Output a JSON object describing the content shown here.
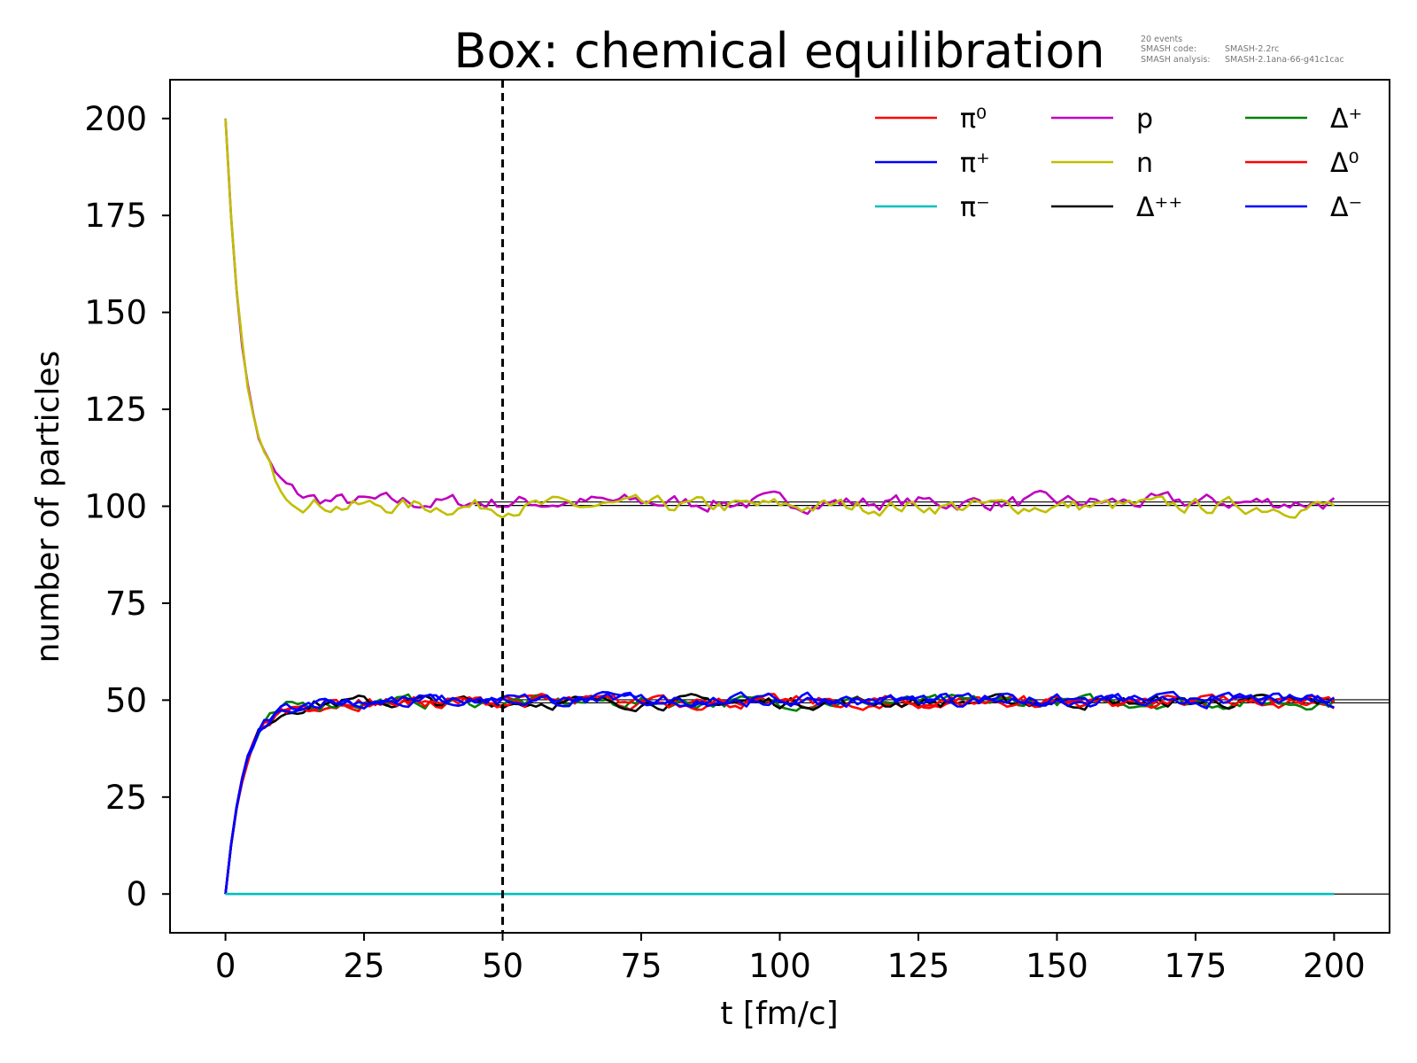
{
  "chart_data": {
    "type": "line",
    "title": "Box: chemical equilibration",
    "annotation": {
      "events": "20 events",
      "code_label": "SMASH code:",
      "code_value": "SMASH-2.2rc",
      "analysis_label": "SMASH analysis:",
      "analysis_value": "SMASH-2.1ana-66-g41c1cac"
    },
    "xlabel": "t [fm/c]",
    "ylabel": "number of particles",
    "xlim": [
      -10,
      210
    ],
    "ylim": [
      -10,
      210
    ],
    "xticks": [
      0,
      25,
      50,
      75,
      100,
      125,
      150,
      175,
      200
    ],
    "yticks": [
      0,
      25,
      50,
      75,
      100,
      125,
      150,
      175,
      200
    ],
    "grid": false,
    "legend_position": "top-right",
    "legend_columns": 3,
    "vertical_line": {
      "x": 50,
      "style": "dashed",
      "color": "#000000"
    },
    "series": [
      {
        "name": "π⁰",
        "color": "#ff0000",
        "start": 0,
        "equilibrium": 49.5
      },
      {
        "name": "π⁺",
        "color": "#0000ff",
        "start": 0,
        "equilibrium": 50
      },
      {
        "name": "π⁻",
        "color": "#00bfbf",
        "start": 0,
        "equilibrium": 0
      },
      {
        "name": "p",
        "color": "#bf00bf",
        "start": 200,
        "equilibrium": 101
      },
      {
        "name": "n",
        "color": "#bfbf00",
        "start": 200,
        "equilibrium": 100
      },
      {
        "name": "Δ⁺⁺",
        "color": "#000000",
        "start": 0,
        "equilibrium": 49.5
      },
      {
        "name": "Δ⁺",
        "color": "#008000",
        "start": 0,
        "equilibrium": 49.5
      },
      {
        "name": "Δ⁰",
        "color": "#ff0000",
        "start": 0,
        "equilibrium": 49.5
      },
      {
        "name": "Δ⁻",
        "color": "#0000ff",
        "start": 0,
        "equilibrium": 50
      }
    ],
    "equilibrium_reference_lines": {
      "color": "#000000",
      "x_range": [
        45,
        210
      ],
      "values": [
        0,
        49.3,
        50.1,
        100.2,
        101.1
      ]
    }
  }
}
